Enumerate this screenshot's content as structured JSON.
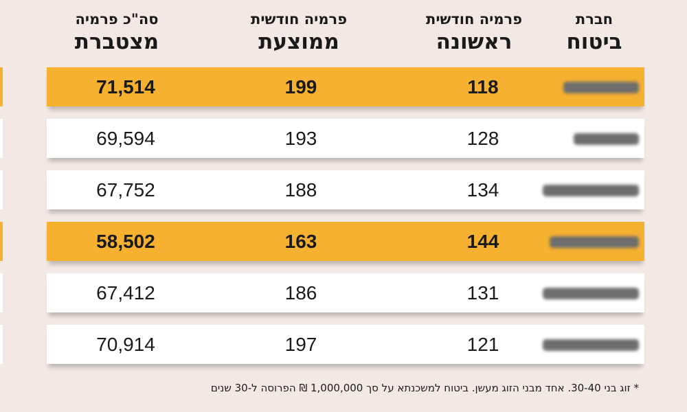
{
  "headers": [
    {
      "line1": "חברת",
      "line2": "ביטוח"
    },
    {
      "line1": "פרמיה חודשית",
      "line2": "ראשונה"
    },
    {
      "line1": "פרמיה חודשית",
      "line2": "ממוצעת"
    },
    {
      "line1": "סה\"כ פרמיה",
      "line2": "מצטברת"
    }
  ],
  "rows": [
    {
      "first": "118",
      "avg": "199",
      "total": "71,514",
      "highlight": true
    },
    {
      "first": "128",
      "avg": "193",
      "total": "69,594",
      "highlight": false
    },
    {
      "first": "134",
      "avg": "188",
      "total": "67,752",
      "highlight": false
    },
    {
      "first": "144",
      "avg": "163",
      "total": "58,502",
      "highlight": true
    },
    {
      "first": "131",
      "avg": "186",
      "total": "67,412",
      "highlight": false
    },
    {
      "first": "121",
      "avg": "197",
      "total": "70,914",
      "highlight": false
    }
  ],
  "footnote": "* זוג בני 30-40. אחד מבני הזוג מעשן. ביטוח למשכנתא על סך 1,000,000 ₪ הפרוסה ל-30 שנים",
  "colors": {
    "background": "#f2e9e4",
    "highlight": "#f6b131",
    "row": "#ffffff",
    "redaction": "#6e6e6e"
  },
  "chart_data": {
    "type": "table",
    "columns": [
      "חברת ביטוח",
      "פרמיה חודשית ראשונה",
      "פרמיה חודשית ממוצעת",
      "סה\"כ פרמיה מצטברת"
    ],
    "rows": [
      [
        "",
        118,
        199,
        71514
      ],
      [
        "",
        128,
        193,
        69594
      ],
      [
        "",
        134,
        188,
        67752
      ],
      [
        "",
        144,
        163,
        58502
      ],
      [
        "",
        131,
        186,
        67412
      ],
      [
        "",
        121,
        197,
        70914
      ]
    ],
    "highlighted_rows": [
      0,
      3
    ]
  }
}
